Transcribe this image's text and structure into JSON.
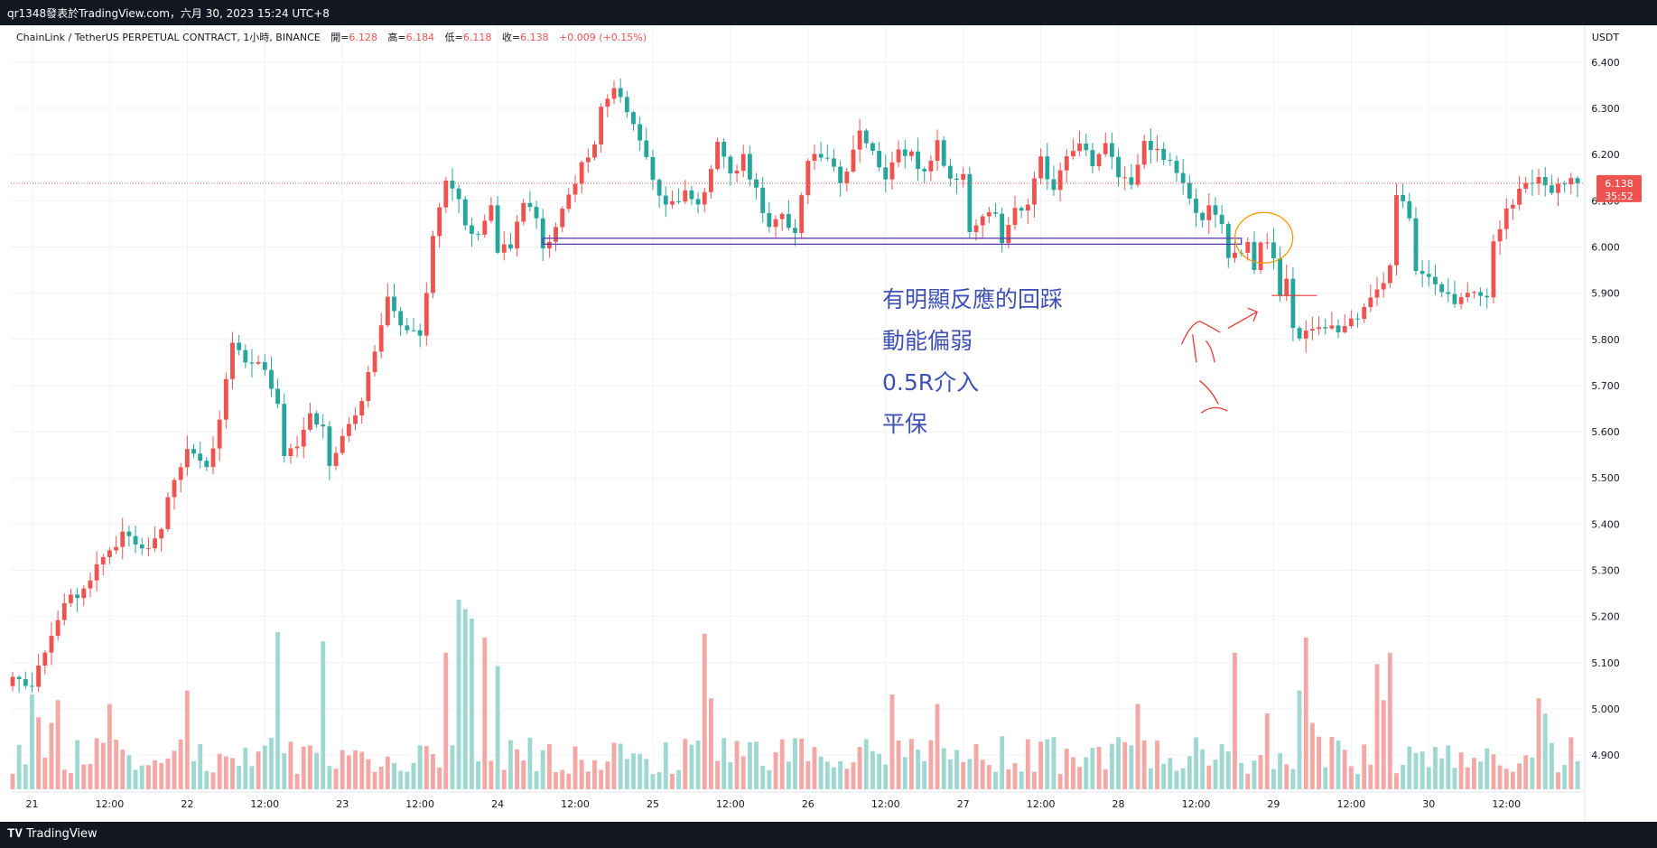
{
  "header": {
    "title": "qr1348發表於TradingView.com，六月 30, 2023 15:24 UTC+8"
  },
  "legend": {
    "instrument": "ChainLink / TetherUS PERPETUAL CONTRACT, 1小時, BINANCE",
    "open_label": "開=",
    "open_value": "6.128",
    "high_label": "高=",
    "high_value": "6.184",
    "low_label": "低=",
    "low_value": "6.118",
    "close_label": "收=",
    "close_value": "6.138",
    "change": "+0.009 (+0.15%)"
  },
  "price_scale": {
    "currency": "USDT",
    "last_price": "6.138",
    "countdown": "35:52"
  },
  "annotation": {
    "lines": [
      "有明顯反應的回踩",
      "動能偏弱",
      "0.5R介入",
      "平保"
    ]
  },
  "footer": {
    "logo_text": "TradingView"
  },
  "colors": {
    "up": "#ef5350",
    "down": "#26a69a",
    "vol_up": "#f4a8a6",
    "vol_down": "#9fd7d1",
    "annotation": "#3f51b5",
    "marker": "#e53935",
    "ellipse": "#ff9800",
    "zone": "#5e35b1"
  },
  "chart_data": {
    "type": "candlestick",
    "title": "ChainLink / TetherUS PERPETUAL CONTRACT, 1小時, BINANCE",
    "ylabel": "USDT",
    "ylim": [
      4.82,
      6.48
    ],
    "y_ticks": [
      "6.400",
      "6.300",
      "6.200",
      "6.100",
      "6.000",
      "5.900",
      "5.800",
      "5.700",
      "5.600",
      "5.500",
      "5.400",
      "5.300",
      "5.200",
      "5.100",
      "5.000",
      "4.900"
    ],
    "x_tick_labels": [
      "21",
      "12:00",
      "22",
      "12:00",
      "23",
      "12:00",
      "24",
      "12:00",
      "25",
      "12:00",
      "26",
      "12:00",
      "27",
      "12:00",
      "28",
      "12:00",
      "29",
      "12:00",
      "30",
      "12:00"
    ],
    "x_tick_hours": [
      0,
      12,
      24,
      36,
      48,
      60,
      72,
      84,
      96,
      108,
      120,
      132,
      144,
      156,
      168,
      180,
      192,
      204,
      216,
      228
    ],
    "start_hour": -3,
    "hours_total": 243,
    "anchors": [
      [
        -3,
        5.08
      ],
      [
        0,
        5.05
      ],
      [
        2,
        5.12
      ],
      [
        4,
        5.2
      ],
      [
        8,
        5.27
      ],
      [
        10,
        5.3
      ],
      [
        12,
        5.33
      ],
      [
        14,
        5.38
      ],
      [
        16,
        5.35
      ],
      [
        18,
        5.36
      ],
      [
        20,
        5.4
      ],
      [
        22,
        5.5
      ],
      [
        24,
        5.55
      ],
      [
        27,
        5.52
      ],
      [
        29,
        5.62
      ],
      [
        30,
        5.72
      ],
      [
        31,
        5.8
      ],
      [
        33,
        5.74
      ],
      [
        35,
        5.75
      ],
      [
        38,
        5.66
      ],
      [
        39,
        5.55
      ],
      [
        41,
        5.58
      ],
      [
        43,
        5.64
      ],
      [
        45,
        5.6
      ],
      [
        46,
        5.54
      ],
      [
        48,
        5.58
      ],
      [
        51,
        5.66
      ],
      [
        53,
        5.78
      ],
      [
        55,
        5.9
      ],
      [
        57,
        5.84
      ],
      [
        60,
        5.8
      ],
      [
        62,
        6.02
      ],
      [
        64,
        6.14
      ],
      [
        66,
        6.1
      ],
      [
        68,
        6.02
      ],
      [
        71,
        6.08
      ],
      [
        72,
        6.0
      ],
      [
        74,
        6.01
      ],
      [
        76,
        6.1
      ],
      [
        78,
        6.06
      ],
      [
        79,
        6.0
      ],
      [
        80,
        6.02
      ],
      [
        83,
        6.1
      ],
      [
        85,
        6.18
      ],
      [
        87,
        6.22
      ],
      [
        88,
        6.3
      ],
      [
        90,
        6.35
      ],
      [
        92,
        6.3
      ],
      [
        94,
        6.22
      ],
      [
        96,
        6.15
      ],
      [
        98,
        6.08
      ],
      [
        101,
        6.12
      ],
      [
        103,
        6.08
      ],
      [
        106,
        6.22
      ],
      [
        108,
        6.15
      ],
      [
        110,
        6.2
      ],
      [
        112,
        6.12
      ],
      [
        114,
        6.05
      ],
      [
        116,
        6.06
      ],
      [
        118,
        6.02
      ],
      [
        120,
        6.2
      ],
      [
        123,
        6.2
      ],
      [
        125,
        6.14
      ],
      [
        128,
        6.24
      ],
      [
        130,
        6.2
      ],
      [
        132,
        6.16
      ],
      [
        134,
        6.22
      ],
      [
        136,
        6.2
      ],
      [
        138,
        6.16
      ],
      [
        140,
        6.22
      ],
      [
        142,
        6.14
      ],
      [
        144,
        6.15
      ],
      [
        145,
        6.03
      ],
      [
        147,
        6.08
      ],
      [
        149,
        6.06
      ],
      [
        150,
        6.0
      ],
      [
        152,
        6.08
      ],
      [
        154,
        6.1
      ],
      [
        156,
        6.2
      ],
      [
        158,
        6.12
      ],
      [
        160,
        6.2
      ],
      [
        162,
        6.23
      ],
      [
        164,
        6.18
      ],
      [
        166,
        6.22
      ],
      [
        168,
        6.15
      ],
      [
        170,
        6.14
      ],
      [
        172,
        6.23
      ],
      [
        174,
        6.2
      ],
      [
        176,
        6.18
      ],
      [
        178,
        6.14
      ],
      [
        180,
        6.06
      ],
      [
        182,
        6.08
      ],
      [
        184,
        6.05
      ],
      [
        185,
        5.98
      ],
      [
        186,
        6.0
      ],
      [
        188,
        6.0
      ],
      [
        189,
        5.95
      ],
      [
        190,
        6.02
      ],
      [
        191,
        6.0
      ],
      [
        192,
        5.98
      ],
      [
        193,
        5.9
      ],
      [
        194,
        5.92
      ],
      [
        195,
        5.83
      ],
      [
        196,
        5.8
      ],
      [
        198,
        5.82
      ],
      [
        200,
        5.82
      ],
      [
        203,
        5.83
      ],
      [
        205,
        5.85
      ],
      [
        207,
        5.88
      ],
      [
        209,
        5.93
      ],
      [
        210,
        5.96
      ],
      [
        211,
        6.12
      ],
      [
        213,
        6.06
      ],
      [
        214,
        5.96
      ],
      [
        215,
        5.94
      ],
      [
        217,
        5.92
      ],
      [
        219,
        5.9
      ],
      [
        221,
        5.88
      ],
      [
        223,
        5.9
      ],
      [
        225,
        5.88
      ],
      [
        226,
        6.02
      ],
      [
        228,
        6.08
      ],
      [
        230,
        6.12
      ],
      [
        232,
        6.14
      ],
      [
        233,
        6.14
      ],
      [
        235,
        6.13
      ],
      [
        236,
        6.138
      ]
    ],
    "volume_spikes": [
      [
        0,
        0.5
      ],
      [
        1,
        0.38
      ],
      [
        3,
        0.35
      ],
      [
        4,
        0.47
      ],
      [
        12,
        0.45
      ],
      [
        24,
        0.52
      ],
      [
        38,
        0.83
      ],
      [
        45,
        0.78
      ],
      [
        64,
        0.72
      ],
      [
        66,
        1.0
      ],
      [
        67,
        0.95
      ],
      [
        68,
        0.9
      ],
      [
        70,
        0.8
      ],
      [
        72,
        0.65
      ],
      [
        104,
        0.82
      ],
      [
        105,
        0.48
      ],
      [
        133,
        0.5
      ],
      [
        140,
        0.45
      ],
      [
        171,
        0.45
      ],
      [
        186,
        0.72
      ],
      [
        191,
        0.4
      ],
      [
        196,
        0.52
      ],
      [
        197,
        0.8
      ],
      [
        198,
        0.35
      ],
      [
        208,
        0.66
      ],
      [
        209,
        0.47
      ],
      [
        210,
        0.72
      ],
      [
        233,
        0.48
      ],
      [
        234,
        0.4
      ]
    ],
    "support_zone": [
      6.01,
      6.015
    ],
    "last_price": 6.138
  }
}
